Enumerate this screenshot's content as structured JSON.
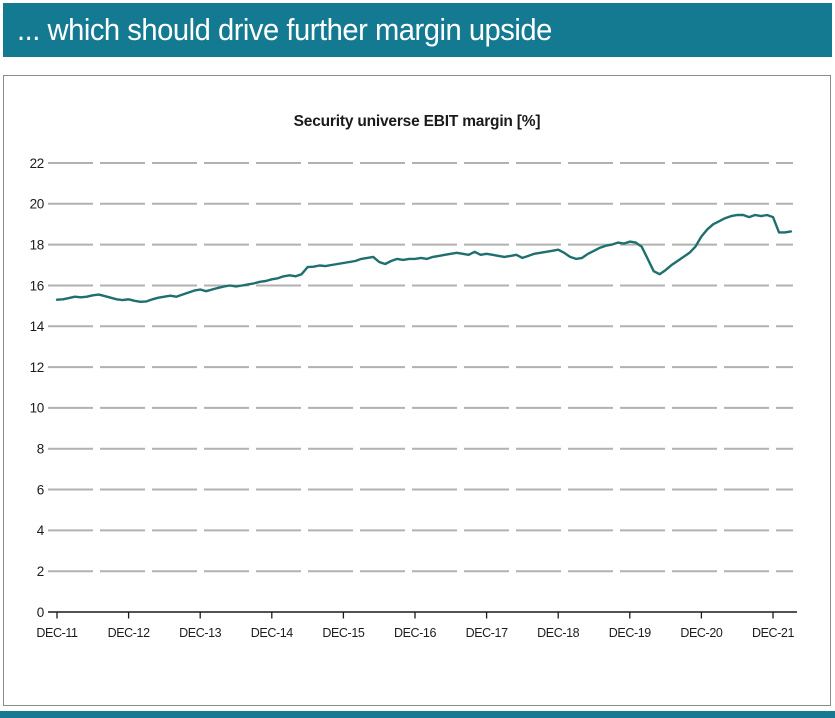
{
  "header": {
    "title": "... which should drive further margin upside"
  },
  "colors": {
    "accent_teal": "#147a91",
    "line_teal": "#1e6f6e",
    "grid_gray": "#b1b1b1",
    "axis_dark": "#1a1a1a",
    "panel_border": "#8c8c8c"
  },
  "chart_data": {
    "type": "line",
    "title": "Security universe EBIT margin [%]",
    "legend": "none",
    "grid": "horizontal-dashed",
    "y_axis": {
      "min": 0,
      "max": 22,
      "ticks": [
        0,
        2,
        4,
        6,
        8,
        10,
        12,
        14,
        16,
        18,
        20,
        22
      ]
    },
    "x_axis": {
      "tick_labels": [
        "DEC-11",
        "DEC-12",
        "DEC-13",
        "DEC-14",
        "DEC-15",
        "DEC-16",
        "DEC-17",
        "DEC-18",
        "DEC-19",
        "DEC-20",
        "DEC-21"
      ],
      "frequency": "monthly",
      "start_month": "DEC-11",
      "end_month": "MAR-22"
    },
    "series": [
      {
        "name": "Security universe EBIT margin [%]",
        "values": [
          15.3,
          15.32,
          15.38,
          15.45,
          15.42,
          15.45,
          15.52,
          15.55,
          15.48,
          15.4,
          15.32,
          15.28,
          15.32,
          15.25,
          15.2,
          15.22,
          15.32,
          15.4,
          15.45,
          15.5,
          15.45,
          15.55,
          15.65,
          15.75,
          15.8,
          15.72,
          15.8,
          15.88,
          15.95,
          16.0,
          15.95,
          16.0,
          16.05,
          16.1,
          16.18,
          16.22,
          16.3,
          16.35,
          16.45,
          16.5,
          16.45,
          16.55,
          16.9,
          16.92,
          16.98,
          16.95,
          17.0,
          17.05,
          17.1,
          17.15,
          17.2,
          17.3,
          17.35,
          17.4,
          17.15,
          17.05,
          17.2,
          17.3,
          17.25,
          17.3,
          17.3,
          17.35,
          17.3,
          17.4,
          17.45,
          17.5,
          17.55,
          17.6,
          17.55,
          17.5,
          17.65,
          17.5,
          17.55,
          17.5,
          17.45,
          17.4,
          17.45,
          17.5,
          17.35,
          17.45,
          17.55,
          17.6,
          17.65,
          17.7,
          17.75,
          17.6,
          17.4,
          17.3,
          17.35,
          17.55,
          17.7,
          17.85,
          17.95,
          18.0,
          18.1,
          18.05,
          18.15,
          18.1,
          17.9,
          17.3,
          16.7,
          16.55,
          16.75,
          17.0,
          17.2,
          17.4,
          17.6,
          17.9,
          18.4,
          18.75,
          19.0,
          19.15,
          19.3,
          19.4,
          19.45,
          19.45,
          19.35,
          19.45,
          19.4,
          19.45,
          19.35,
          18.6,
          18.6,
          18.65
        ]
      }
    ]
  }
}
